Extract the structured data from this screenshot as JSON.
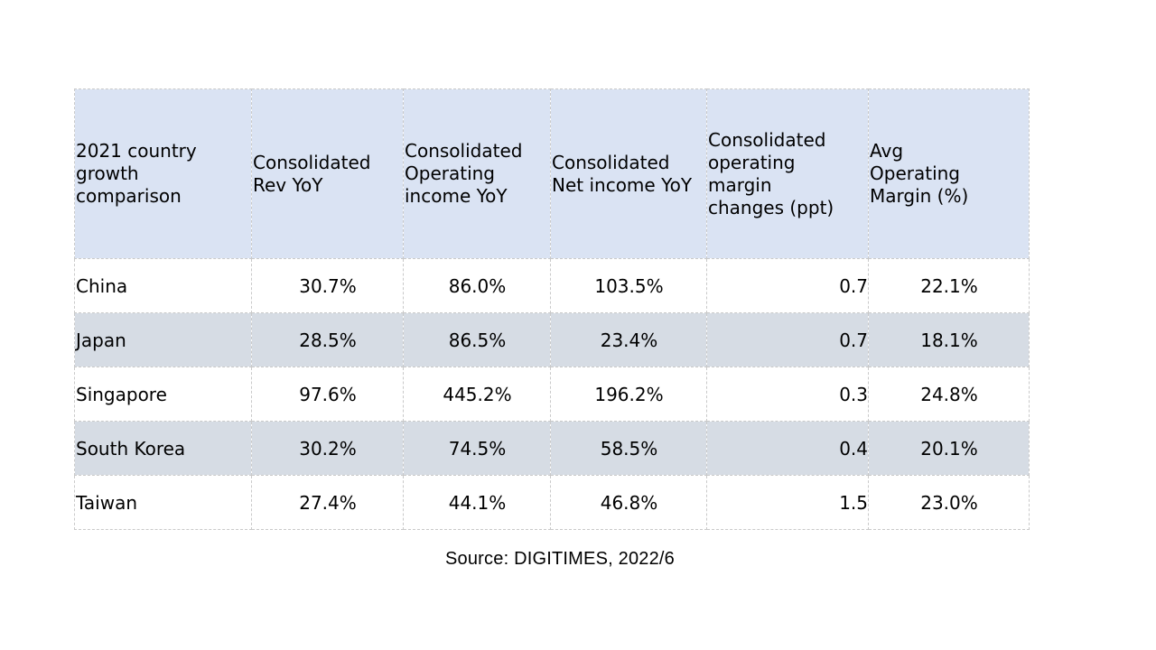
{
  "chart_data": {
    "type": "table",
    "columns": [
      "2021 country\ngrowth\ncomparison",
      "Consolidated\nRev YoY",
      "Consolidated\nOperating\nincome YoY",
      "Consolidated\nNet income YoY",
      "Consolidated\noperating\nmargin\nchanges (ppt)",
      "Avg\nOperating\nMargin (%)"
    ],
    "rows": [
      [
        "China",
        "30.7%",
        "86.0%",
        "103.5%",
        "0.7",
        "22.1%"
      ],
      [
        "Japan",
        "28.5%",
        "86.5%",
        "23.4%",
        "0.7",
        "18.1%"
      ],
      [
        "Singapore",
        "97.6%",
        "445.2%",
        "196.2%",
        "0.3",
        "24.8%"
      ],
      [
        "South Korea",
        "30.2%",
        "74.5%",
        "58.5%",
        "0.4",
        "20.1%"
      ],
      [
        "Taiwan",
        "27.4%",
        "44.1%",
        "46.8%",
        "1.5",
        "23.0%"
      ]
    ]
  },
  "source": "Source: DIGITIMES, 2022/6",
  "colors": {
    "header_bg": "#dae3f3",
    "band_bg": "#d6dce4",
    "border": "#c9c9c9"
  }
}
